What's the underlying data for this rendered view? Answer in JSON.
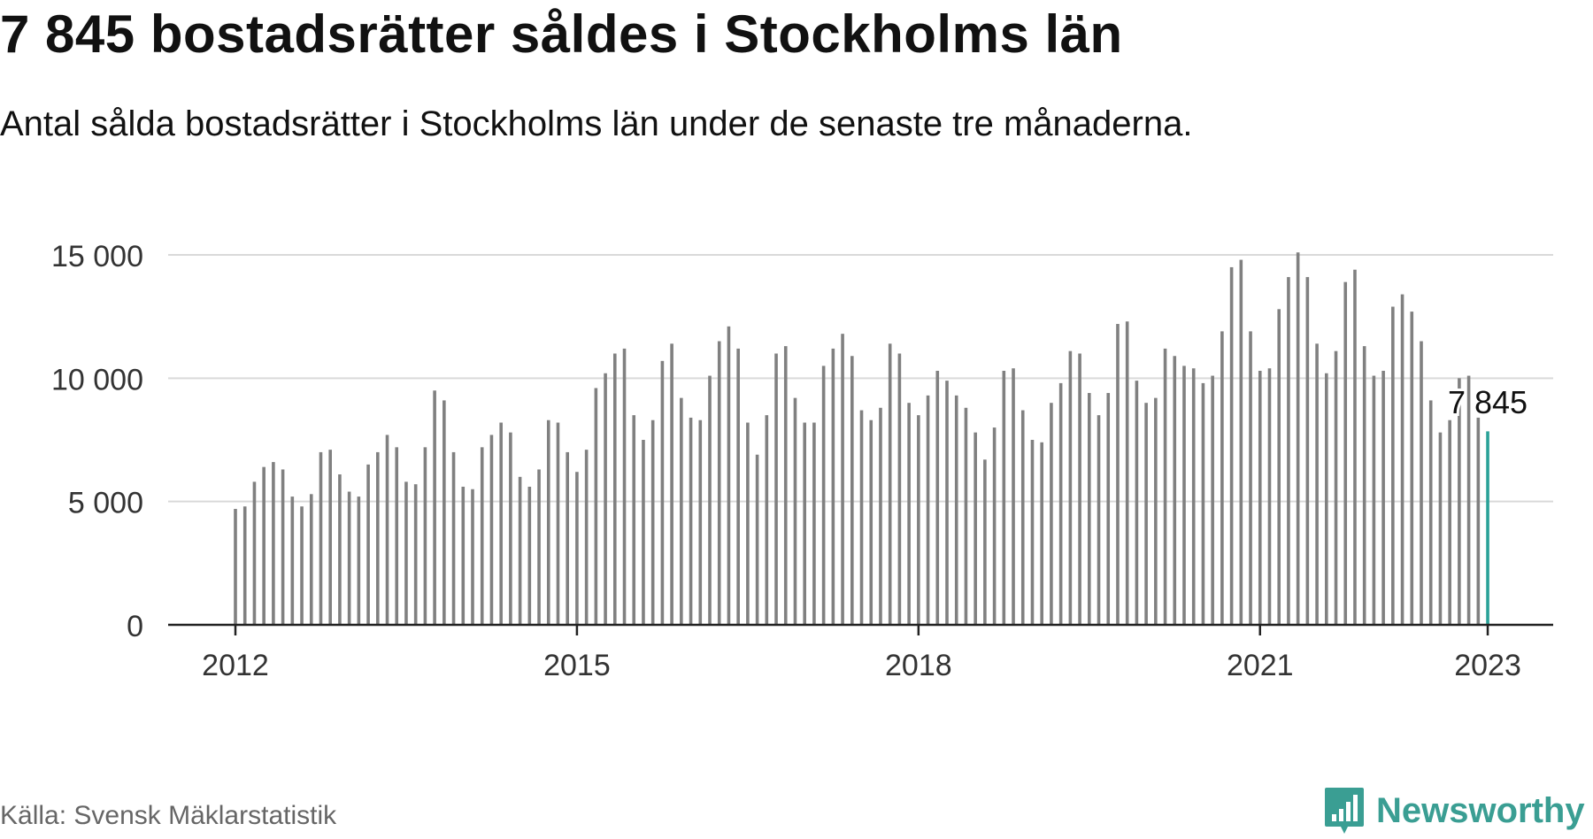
{
  "title": "7 845 bostadsrätter såldes i Stockholms län",
  "subtitle": "Antal sålda bostadsrätter i Stockholms län under de senaste tre månaderna.",
  "source": "Källa: Svensk Mäklarstatistik",
  "brand": "Newsworthy",
  "colors": {
    "bar": "#808080",
    "highlight": "#2aa198",
    "grid": "#d9d9d9",
    "axis": "#222222",
    "brand": "#3a9e93"
  },
  "chart_data": {
    "type": "bar",
    "x_start": "2012-01",
    "x_ticks": [
      "2012",
      "2015",
      "2018",
      "2021",
      "2023"
    ],
    "y_ticks": [
      "0",
      "5 000",
      "10 000",
      "15 000"
    ],
    "ylim": [
      0,
      15000
    ],
    "grid": true,
    "highlight_label": "7 845",
    "values": [
      4700,
      4800,
      5800,
      6400,
      6600,
      6300,
      5200,
      4800,
      5300,
      7000,
      7100,
      6100,
      5400,
      5200,
      6500,
      7000,
      7700,
      7200,
      5800,
      5700,
      7200,
      9500,
      9100,
      7000,
      5600,
      5500,
      7200,
      7700,
      8200,
      7800,
      6000,
      5600,
      6300,
      8300,
      8200,
      7000,
      6200,
      7100,
      9600,
      10200,
      11000,
      11200,
      8500,
      7500,
      8300,
      10700,
      11400,
      9200,
      8400,
      8300,
      10100,
      11500,
      12100,
      11200,
      8200,
      6900,
      8500,
      11000,
      11300,
      9200,
      8200,
      8200,
      10500,
      11200,
      11800,
      10900,
      8700,
      8300,
      8800,
      11400,
      11000,
      9000,
      8500,
      9300,
      10300,
      9900,
      9300,
      8800,
      7800,
      6700,
      8000,
      10300,
      10400,
      8700,
      7500,
      7400,
      9000,
      9800,
      11100,
      11000,
      9400,
      8500,
      9400,
      12200,
      12300,
      9900,
      9000,
      9200,
      11200,
      10900,
      10500,
      10400,
      9800,
      10100,
      11900,
      14500,
      14800,
      11900,
      10300,
      10400,
      12800,
      14100,
      15100,
      14100,
      11400,
      10200,
      11100,
      13900,
      14400,
      11300,
      10100,
      10300,
      12900,
      13400,
      12700,
      11500,
      9100,
      7800,
      8300,
      10000,
      10100,
      8400,
      7845
    ]
  }
}
